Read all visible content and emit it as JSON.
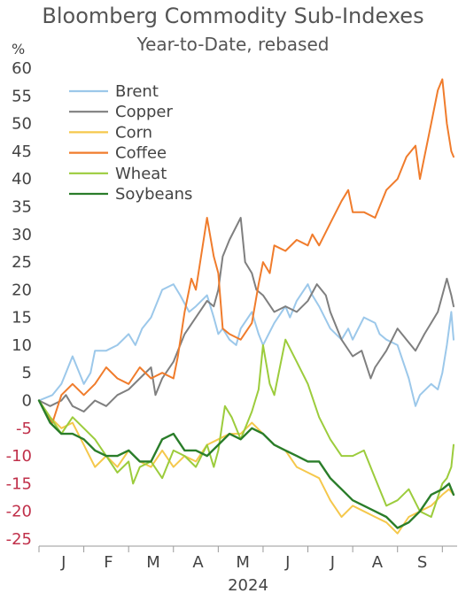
{
  "chart_data": {
    "type": "line",
    "title": "Bloomberg Commodity Sub-Indexes",
    "subtitle": "Year-to-Date, rebased",
    "ylabel": "%",
    "xlabel": "2024",
    "ylim": [
      -25,
      60
    ],
    "yticks": [
      60,
      55,
      50,
      45,
      40,
      35,
      30,
      25,
      20,
      15,
      10,
      5,
      0,
      -5,
      -10,
      -15,
      -20,
      -25
    ],
    "xlim": [
      0,
      9.33
    ],
    "month_labels": [
      "J",
      "F",
      "M",
      "A",
      "M",
      "J",
      "J",
      "A",
      "S"
    ],
    "grid": false,
    "legend_position": "top-left",
    "colors": {
      "negative_tick": "#c0304a",
      "axis": "#999999"
    },
    "series": [
      {
        "name": "Brent",
        "color": "#9cc8ea",
        "x": [
          0,
          0.15,
          0.3,
          0.5,
          0.6,
          0.75,
          0.95,
          1.0,
          1.15,
          1.25,
          1.5,
          1.75,
          2.0,
          2.15,
          2.3,
          2.5,
          2.75,
          3.0,
          3.15,
          3.35,
          3.5,
          3.75,
          3.9,
          4.0,
          4.1,
          4.25,
          4.4,
          4.5,
          4.75,
          4.9,
          5.0,
          5.25,
          5.5,
          5.6,
          5.75,
          6.0,
          6.1,
          6.25,
          6.5,
          6.75,
          6.9,
          7.0,
          7.25,
          7.5,
          7.6,
          7.75,
          8.0,
          8.25,
          8.4,
          8.5,
          8.75,
          8.9,
          9.0,
          9.1,
          9.2,
          9.25
        ],
        "values": [
          0,
          0.5,
          1,
          3,
          5,
          8,
          4,
          3,
          5,
          9,
          9,
          10,
          12,
          10,
          13,
          15,
          20,
          21,
          19,
          16,
          17,
          19,
          15,
          12,
          13,
          11,
          10,
          13,
          16,
          12,
          10,
          14,
          17,
          15,
          18,
          21,
          19,
          17,
          13,
          11,
          13,
          11,
          15,
          14,
          12,
          11,
          10,
          4,
          -1,
          1,
          3,
          2,
          5,
          10,
          16,
          11
        ]
      },
      {
        "name": "Copper",
        "color": "#7f7f7f",
        "x": [
          0,
          0.25,
          0.5,
          0.6,
          0.75,
          1.0,
          1.25,
          1.5,
          1.75,
          2.0,
          2.25,
          2.5,
          2.6,
          2.75,
          3.0,
          3.1,
          3.25,
          3.5,
          3.75,
          3.9,
          4.0,
          4.1,
          4.25,
          4.5,
          4.6,
          4.75,
          4.85,
          5.0,
          5.25,
          5.5,
          5.75,
          6.0,
          6.2,
          6.4,
          6.5,
          6.75,
          7.0,
          7.2,
          7.4,
          7.5,
          7.75,
          8.0,
          8.2,
          8.4,
          8.6,
          8.75,
          8.9,
          9.0,
          9.1,
          9.2,
          9.25
        ],
        "values": [
          0,
          -1,
          0,
          1,
          -1,
          -2,
          0,
          -1,
          1,
          2,
          4,
          6,
          1,
          4,
          7,
          9,
          12,
          15,
          18,
          17,
          20,
          26,
          29,
          33,
          25,
          23,
          20,
          19,
          16,
          17,
          16,
          18,
          21,
          19,
          16,
          11,
          8,
          9,
          4,
          6,
          9,
          13,
          11,
          9,
          12,
          14,
          16,
          19,
          22,
          19,
          17
        ]
      },
      {
        "name": "Corn",
        "color": "#f5c84c",
        "x": [
          0,
          0.25,
          0.5,
          0.75,
          1.0,
          1.25,
          1.5,
          1.75,
          2.0,
          2.25,
          2.5,
          2.75,
          3.0,
          3.25,
          3.5,
          3.75,
          4.0,
          4.25,
          4.5,
          4.75,
          5.0,
          5.25,
          5.5,
          5.75,
          6.0,
          6.25,
          6.5,
          6.75,
          7.0,
          7.25,
          7.5,
          7.75,
          8.0,
          8.25,
          8.5,
          8.75,
          9.0,
          9.15,
          9.25
        ],
        "values": [
          0,
          -3,
          -5,
          -4,
          -8,
          -12,
          -10,
          -12,
          -9,
          -11,
          -12,
          -9,
          -12,
          -10,
          -11,
          -8,
          -7,
          -6,
          -6,
          -4,
          -6,
          -8,
          -9,
          -12,
          -13,
          -14,
          -18,
          -21,
          -19,
          -20,
          -21,
          -22,
          -24,
          -21,
          -20,
          -19,
          -17,
          -16,
          -17
        ]
      },
      {
        "name": "Coffee",
        "color": "#f07c2c",
        "x": [
          0,
          0.15,
          0.3,
          0.5,
          0.75,
          1.0,
          1.25,
          1.5,
          1.75,
          2.0,
          2.25,
          2.5,
          2.75,
          3.0,
          3.1,
          3.25,
          3.4,
          3.5,
          3.75,
          3.9,
          4.0,
          4.1,
          4.25,
          4.5,
          4.75,
          4.9,
          5.0,
          5.15,
          5.25,
          5.5,
          5.75,
          6.0,
          6.1,
          6.25,
          6.5,
          6.75,
          6.9,
          7.0,
          7.25,
          7.5,
          7.75,
          8.0,
          8.2,
          8.4,
          8.5,
          8.6,
          8.75,
          8.9,
          9.0,
          9.1,
          9.2,
          9.25
        ],
        "values": [
          0,
          -2,
          -4,
          1,
          3,
          1,
          3,
          6,
          4,
          3,
          6,
          4,
          5,
          4,
          8,
          16,
          22,
          20,
          33,
          26,
          23,
          13,
          12,
          11,
          14,
          21,
          25,
          23,
          28,
          27,
          29,
          28,
          30,
          28,
          32,
          36,
          38,
          34,
          34,
          33,
          38,
          40,
          44,
          46,
          40,
          44,
          50,
          56,
          58,
          50,
          45,
          44
        ]
      },
      {
        "name": "Wheat",
        "color": "#9ccc3c",
        "x": [
          0,
          0.25,
          0.5,
          0.75,
          1.0,
          1.25,
          1.5,
          1.75,
          2.0,
          2.1,
          2.25,
          2.5,
          2.75,
          3.0,
          3.25,
          3.5,
          3.75,
          3.9,
          4.0,
          4.15,
          4.3,
          4.5,
          4.75,
          4.9,
          5.0,
          5.15,
          5.25,
          5.5,
          5.75,
          6.0,
          6.25,
          6.5,
          6.75,
          7.0,
          7.25,
          7.5,
          7.75,
          8.0,
          8.25,
          8.5,
          8.75,
          9.0,
          9.1,
          9.2,
          9.25
        ],
        "values": [
          0,
          -3,
          -6,
          -3,
          -5,
          -7,
          -10,
          -13,
          -11,
          -15,
          -12,
          -11,
          -14,
          -9,
          -10,
          -12,
          -8,
          -12,
          -9,
          -1,
          -3,
          -7,
          -2,
          2,
          10,
          3,
          1,
          11,
          7,
          3,
          -3,
          -7,
          -10,
          -10,
          -9,
          -14,
          -19,
          -18,
          -16,
          -20,
          -21,
          -15,
          -14,
          -12,
          -8
        ]
      },
      {
        "name": "Soybeans",
        "color": "#2a7d2a",
        "x": [
          0,
          0.25,
          0.5,
          0.75,
          1.0,
          1.25,
          1.5,
          1.75,
          2.0,
          2.25,
          2.5,
          2.75,
          3.0,
          3.25,
          3.5,
          3.75,
          4.0,
          4.25,
          4.5,
          4.75,
          5.0,
          5.25,
          5.5,
          5.75,
          6.0,
          6.25,
          6.5,
          6.75,
          7.0,
          7.25,
          7.5,
          7.75,
          8.0,
          8.25,
          8.5,
          8.75,
          9.0,
          9.15,
          9.25
        ],
        "values": [
          0,
          -4,
          -6,
          -6,
          -7,
          -9,
          -10,
          -10,
          -9,
          -11,
          -11,
          -7,
          -6,
          -9,
          -9,
          -10,
          -8,
          -6,
          -7,
          -5,
          -6,
          -8,
          -9,
          -10,
          -11,
          -11,
          -14,
          -16,
          -18,
          -19,
          -20,
          -21,
          -23,
          -22,
          -20,
          -17,
          -16,
          -15,
          -17
        ]
      }
    ]
  }
}
